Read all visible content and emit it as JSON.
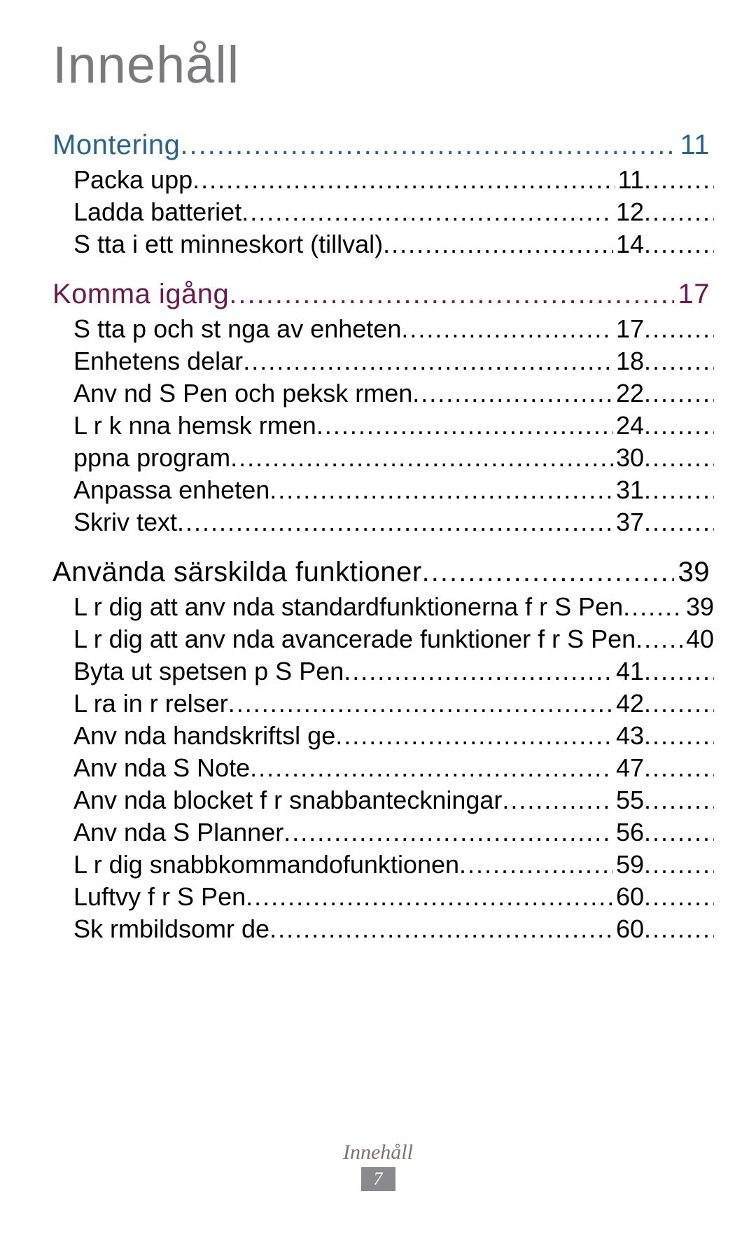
{
  "title": "Innehåll",
  "colors": {
    "title": "#7a7a7c",
    "section1": "#2b6289",
    "section2": "#6a1a4a",
    "section3": "#000000",
    "body_text": "#000000",
    "footer_text": "#7f7070",
    "footer_badge_bg": "#8a8a8c",
    "footer_badge_text": "#ffffff",
    "background": "#ffffff"
  },
  "typography": {
    "title_fontsize": 74,
    "section_fontsize": 40,
    "sub_fontsize": 36,
    "footer_fontsize": 30,
    "badge_fontsize": 26
  },
  "footer": {
    "label": "Innehåll",
    "page": "7"
  },
  "sections": [
    {
      "title": "Montering",
      "page": "11",
      "color": "#2b6289",
      "items": [
        {
          "label": "Packa upp",
          "page": "11"
        },
        {
          "label": "Ladda batteriet",
          "page": "12"
        },
        {
          "label": "S tta i ett minneskort (tillval)",
          "page": "14"
        }
      ]
    },
    {
      "title": "Komma igång",
      "page": "17",
      "color": "#6a1a4a",
      "items": [
        {
          "label": "S tta p  och st nga av enheten",
          "page": "17"
        },
        {
          "label": "Enhetens delar",
          "page": "18"
        },
        {
          "label": "Anv nd S Pen och peksk rmen",
          "page": "22"
        },
        {
          "label": "L r k nna hemsk rmen",
          "page": "24"
        },
        {
          "label": " ppna program",
          "page": "30"
        },
        {
          "label": "Anpassa enheten",
          "page": "31"
        },
        {
          "label": "Skriv text",
          "page": "37"
        }
      ]
    },
    {
      "title": "Använda särskilda funktioner",
      "page": "39",
      "color": "#000000",
      "items": [
        {
          "label": "L r dig att anv nda standardfunktionerna f r S Pen",
          "page": "39",
          "no_tail": true
        },
        {
          "label": "L r dig att anv nda avancerade funktioner f r S Pen",
          "page": "40",
          "no_tail": true
        },
        {
          "label": "Byta ut spetsen p  S Pen",
          "page": "41"
        },
        {
          "label": "L ra in r relser",
          "page": "42"
        },
        {
          "label": "Anv nda handskriftsl ge",
          "page": "43"
        },
        {
          "label": "Anv nda S Note",
          "page": "47"
        },
        {
          "label": "Anv nda blocket f r snabbanteckningar",
          "page": "55"
        },
        {
          "label": "Anv nda S Planner",
          "page": "56"
        },
        {
          "label": "L r dig snabbkommandofunktionen",
          "page": "59"
        },
        {
          "label": "Luftvy f r S Pen",
          "page": "60"
        },
        {
          "label": "Sk rmbildsomr de",
          "page": "60"
        }
      ]
    }
  ]
}
